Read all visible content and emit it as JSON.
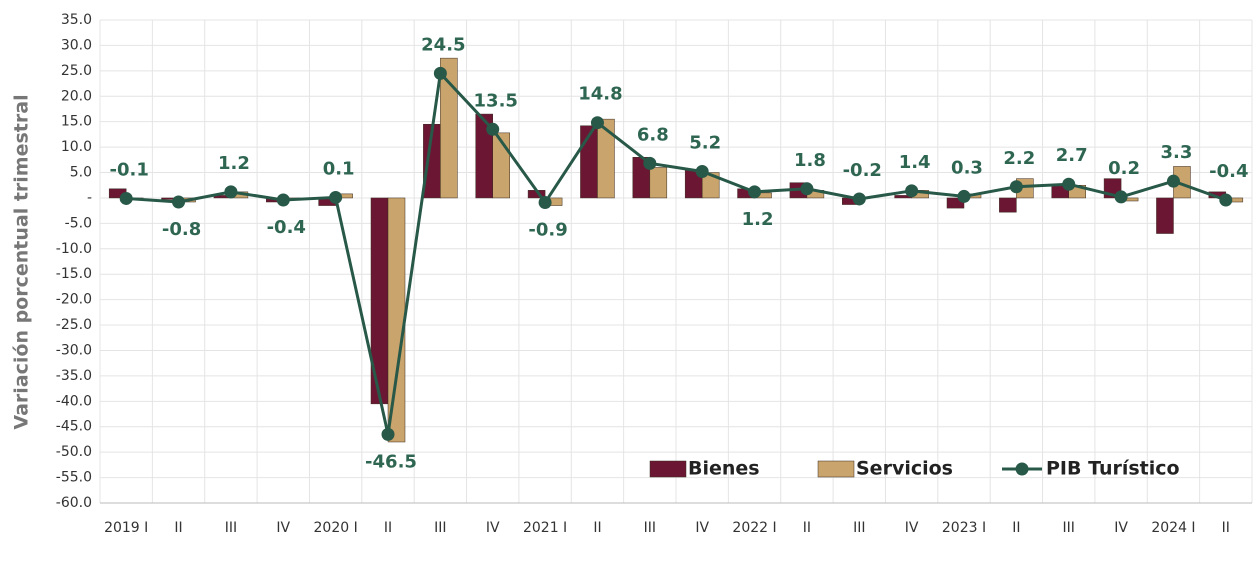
{
  "chart_data": {
    "type": "bar-line",
    "y_label": "Variación porcentual trimestral",
    "categories": [
      "2019 I",
      "II",
      "III",
      "IV",
      "2020 I",
      "II",
      "III",
      "IV",
      "2021 I",
      "II",
      "III",
      "IV",
      "2022 I",
      "II",
      "III",
      "IV",
      "2023 I",
      "II",
      "III",
      "IV",
      "2024 I",
      "II"
    ],
    "series": [
      {
        "name": "Bienes",
        "type": "bar",
        "color": "#6b1733",
        "values": [
          1.8,
          -0.3,
          0.5,
          -0.8,
          -1.5,
          -40.5,
          14.5,
          16.5,
          1.5,
          14.2,
          8,
          5.5,
          1.8,
          3,
          -1.3,
          0.5,
          -2,
          -2.8,
          2.5,
          3.8,
          -7,
          1.2
        ]
      },
      {
        "name": "Servicios",
        "type": "bar",
        "color": "#c9a46c",
        "values": [
          -0.3,
          -0.8,
          1.2,
          -0.3,
          0.8,
          -48,
          27.5,
          12.8,
          -1.5,
          15.5,
          6,
          5,
          1,
          1.5,
          0,
          1.5,
          0.8,
          3.8,
          2.5,
          -0.6,
          6.2,
          -0.8
        ]
      },
      {
        "name": "PIB Turístico",
        "type": "line",
        "color": "#275848",
        "values": [
          -0.1,
          -0.8,
          1.2,
          -0.4,
          0.1,
          -46.5,
          24.5,
          13.5,
          -0.9,
          14.8,
          6.8,
          5.2,
          1.2,
          1.8,
          -0.2,
          1.4,
          0.3,
          2.2,
          2.7,
          0.2,
          3.3,
          -0.4
        ]
      }
    ],
    "ylim": [
      -60,
      35
    ],
    "yticks": [
      {
        "value": 35,
        "label": "35.0"
      },
      {
        "value": 30,
        "label": "30.0"
      },
      {
        "value": 25,
        "label": "25.0"
      },
      {
        "value": 20,
        "label": "20.0"
      },
      {
        "value": 15,
        "label": "15.0"
      },
      {
        "value": 10,
        "label": "10.0"
      },
      {
        "value": 5,
        "label": "5.0"
      },
      {
        "value": 0,
        "label": "-"
      },
      {
        "value": -5,
        "label": "-5.0"
      },
      {
        "value": -10,
        "label": "-10.0"
      },
      {
        "value": -15,
        "label": "-15.0"
      },
      {
        "value": -20,
        "label": "-20.0"
      },
      {
        "value": -25,
        "label": "-25.0"
      },
      {
        "value": -30,
        "label": "-30.0"
      },
      {
        "value": -35,
        "label": "-35.0"
      },
      {
        "value": -40,
        "label": "-40.0"
      },
      {
        "value": -45,
        "label": "-45.0"
      },
      {
        "value": -50,
        "label": "-50.0"
      },
      {
        "value": -55,
        "label": "-55.0"
      },
      {
        "value": -60,
        "label": "-60.0"
      }
    ],
    "grid": true,
    "legend": "lower right"
  }
}
